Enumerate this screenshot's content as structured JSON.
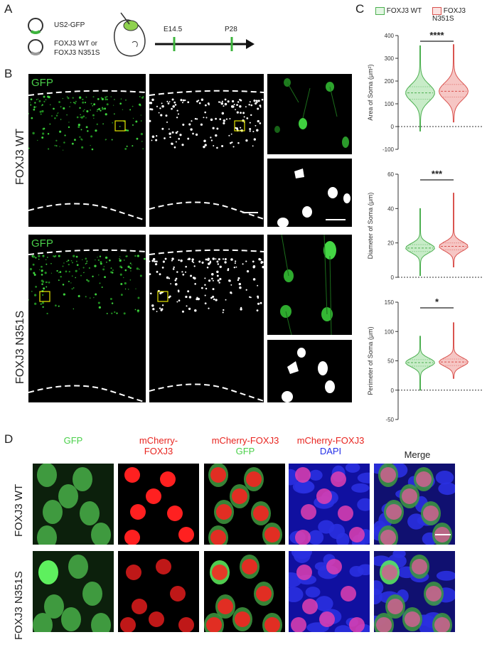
{
  "panel_a": {
    "letter": "A",
    "plasmid1": "US2-GFP",
    "plasmid2_line1": "FOXJ3 WT or",
    "plasmid2_line2": "FOXJ3 N351S",
    "timeline": [
      "E14.5",
      "P28"
    ]
  },
  "panel_b": {
    "letter": "B",
    "rows": [
      {
        "label": "FOXJ3 WT",
        "gfp_label": "GFP"
      },
      {
        "label": "FOXJ3 N351S",
        "gfp_label": "GFP"
      }
    ]
  },
  "panel_c": {
    "letter": "C",
    "legend": [
      "FOXJ3 WT",
      "FOXJ3 N351S"
    ],
    "colors": {
      "wt": "#4caf50",
      "n351s": "#d9534f",
      "wt_fill": "#c8ecc8",
      "n351s_fill": "#f6c6c4"
    }
  },
  "chart_data": [
    {
      "type": "violin",
      "ylabel": "Area of Soma (μm²)",
      "ylim": [
        -100,
        400
      ],
      "yticks": [
        "400",
        "300",
        "200",
        "100",
        "0",
        "-100"
      ],
      "significance": "****",
      "series": [
        {
          "name": "FOXJ3 WT",
          "min": -20,
          "q1": 120,
          "median": 148,
          "q3": 175,
          "max": 355
        },
        {
          "name": "FOXJ3 N351S",
          "min": 20,
          "q1": 130,
          "median": 155,
          "q3": 185,
          "max": 360
        }
      ]
    },
    {
      "type": "violin",
      "ylabel": "Diameter of Soma (μm)",
      "ylim": [
        0,
        60
      ],
      "yticks": [
        "60",
        "40",
        "20",
        "0"
      ],
      "significance": "***",
      "series": [
        {
          "name": "FOXJ3 WT",
          "min": 1,
          "q1": 15,
          "median": 17,
          "q3": 19,
          "max": 40
        },
        {
          "name": "FOXJ3 N351S",
          "min": 6,
          "q1": 16,
          "median": 18,
          "q3": 20,
          "max": 49
        }
      ]
    },
    {
      "type": "violin",
      "ylabel": "Perimeter of Soma (μm)",
      "ylim": [
        -50,
        150
      ],
      "yticks": [
        "150",
        "100",
        "50",
        "0",
        "-50"
      ],
      "significance": "*",
      "series": [
        {
          "name": "FOXJ3 WT",
          "min": 0,
          "q1": 41,
          "median": 47,
          "q3": 52,
          "max": 92
        },
        {
          "name": "FOXJ3 N351S",
          "min": 20,
          "q1": 42,
          "median": 48,
          "q3": 53,
          "max": 115
        }
      ]
    }
  ],
  "panel_d": {
    "letter": "D",
    "columns": [
      {
        "line1": "GFP",
        "line2": ""
      },
      {
        "line1": "mCherry-",
        "line2": "FOXJ3"
      },
      {
        "line1": "mCherry-FOXJ3",
        "line2": "GFP"
      },
      {
        "line1": "mCherry-FOXJ3",
        "line2": "DAPI"
      },
      {
        "line1": "Merge",
        "line2": ""
      }
    ],
    "rows": [
      "FOXJ3 WT",
      "FOXJ3 N351S"
    ]
  }
}
